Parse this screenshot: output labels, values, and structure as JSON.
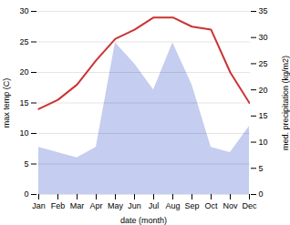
{
  "chart_data": {
    "type": "line",
    "categories": [
      "Jan",
      "Feb",
      "Mar",
      "Apr",
      "May",
      "Jun",
      "Jul",
      "Aug",
      "Sep",
      "Oct",
      "Nov",
      "Dec"
    ],
    "series": [
      {
        "type": "area",
        "axis": "y2",
        "color": "#c5cdf0",
        "values": [
          9,
          8,
          7,
          9,
          29,
          25,
          20,
          29,
          21,
          9,
          8,
          13
        ]
      },
      {
        "type": "line",
        "color": "#cc3333",
        "values": [
          14,
          15.5,
          18,
          22,
          25.5,
          27,
          29,
          29,
          27.5,
          27,
          20,
          15
        ]
      }
    ],
    "xlabel": "date (month)",
    "ylabel": "max temp (C)",
    "y2label": "med. precipitation (kg/m2)",
    "ylim": [
      0,
      30
    ],
    "yticks": [
      0,
      5,
      10,
      15,
      20,
      25,
      30
    ],
    "y2lim": [
      0,
      35
    ],
    "y2ticks": [
      0,
      5,
      10,
      15,
      20,
      25,
      30,
      35
    ],
    "grid": true
  }
}
